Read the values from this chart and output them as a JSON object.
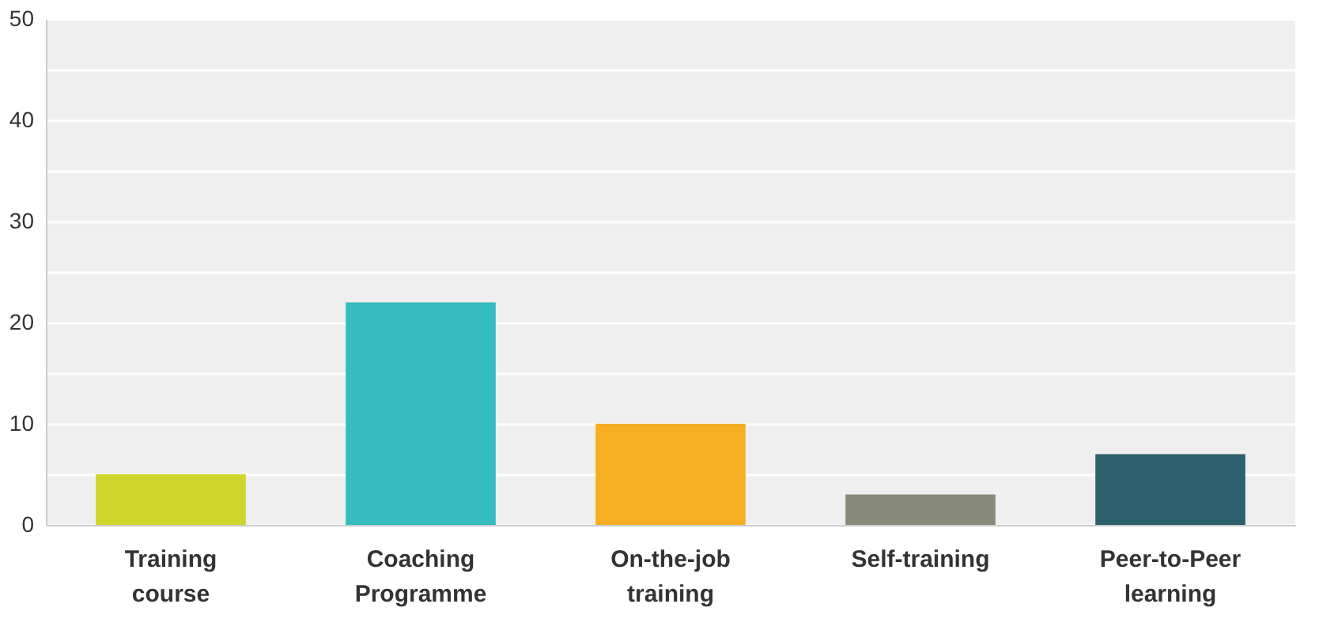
{
  "chart_data": {
    "type": "bar",
    "categories": [
      "Training course",
      "Coaching Programme",
      "On-the-job training",
      "Self-training",
      "Peer-to-Peer learning"
    ],
    "values": [
      5,
      22,
      10,
      3,
      7
    ],
    "colors": [
      "#d0d52a",
      "#34bcbf",
      "#f6ae22",
      "#888a79",
      "#2d5f6c"
    ],
    "ylim": [
      0,
      50
    ],
    "yticks": [
      0,
      {
        "value": 5,
        "label": null
      },
      10,
      {
        "value": 15,
        "label": null
      },
      20,
      {
        "value": 25,
        "label": null
      },
      30,
      {
        "value": 35,
        "label": null
      },
      40,
      {
        "value": 45,
        "label": null
      },
      50
    ],
    "grid": "y"
  }
}
